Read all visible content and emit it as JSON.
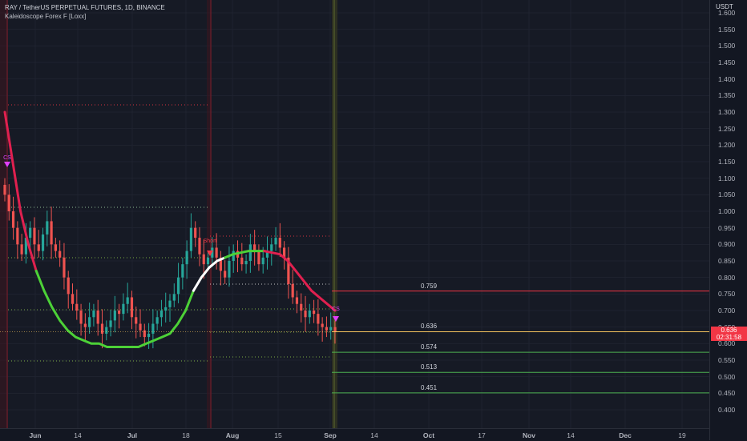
{
  "header": {
    "symbol_line": "RAY / TetherUS PERPETUAL FUTURES, 1D, BINANCE",
    "indicator_name": "Kaleidoscope Forex F [Loxx]"
  },
  "price_axis": {
    "currency": "USDT",
    "ticks": [
      "1.600",
      "1.550",
      "1.500",
      "1.450",
      "1.400",
      "1.350",
      "1.300",
      "1.250",
      "1.200",
      "1.150",
      "1.100",
      "1.050",
      "1.000",
      "0.950",
      "0.900",
      "0.850",
      "0.800",
      "0.750",
      "0.700",
      "0.650",
      "0.600",
      "0.550",
      "0.500",
      "0.450",
      "0.400"
    ],
    "current_price": "0.636",
    "countdown": "02:31:58"
  },
  "time_axis": {
    "ticks": [
      "Jun",
      "14",
      "Jul",
      "18",
      "Aug",
      "15",
      "Sep",
      "14",
      "Oct",
      "17",
      "Nov",
      "14",
      "Dec",
      "19"
    ]
  },
  "levels": [
    {
      "label": "0.759",
      "value": 0.759,
      "color": "#f23645"
    },
    {
      "label": "0.636",
      "value": 0.636,
      "color": "#f7c55f"
    },
    {
      "label": "0.574",
      "value": 0.574,
      "color": "#4caf50"
    },
    {
      "label": "0.513",
      "value": 0.513,
      "color": "#4caf50"
    },
    {
      "label": "0.451",
      "value": 0.451,
      "color": "#4caf50"
    }
  ],
  "signals": [
    {
      "text": "Short",
      "color": "#f23645"
    },
    {
      "text": "CS",
      "color": "#e040fb"
    },
    {
      "text": "CS",
      "color": "#e040fb"
    }
  ],
  "colors": {
    "bull_candle": "#26a69a",
    "bear_candle": "#ef5350",
    "ma_up": "#4cd137",
    "ma_down": "#e0204f",
    "ma_flat": "#ffffff"
  },
  "chart_data": {
    "type": "candlestick",
    "symbol": "RAY / TetherUS PERPETUAL FUTURES",
    "timeframe": "1D",
    "exchange": "BINANCE",
    "ylim": [
      0.38,
      1.62
    ],
    "current_price": 0.636,
    "close_series": [
      1.05,
      1.0,
      0.95,
      0.9,
      0.87,
      0.92,
      0.95,
      0.9,
      0.88,
      0.93,
      0.97,
      0.9,
      0.88,
      0.86,
      0.8,
      0.75,
      0.72,
      0.7,
      0.66,
      0.65,
      0.68,
      0.7,
      0.66,
      0.63,
      0.65,
      0.67,
      0.7,
      0.69,
      0.72,
      0.74,
      0.68,
      0.66,
      0.64,
      0.62,
      0.63,
      0.66,
      0.68,
      0.7,
      0.71,
      0.73,
      0.75,
      0.8,
      0.84,
      0.88,
      0.95,
      0.92,
      0.87,
      0.84,
      0.86,
      0.89,
      0.86,
      0.82,
      0.8,
      0.85,
      0.88,
      0.86,
      0.84,
      0.85,
      0.9,
      0.88,
      0.84,
      0.86,
      0.88,
      0.9,
      0.92,
      0.89,
      0.86,
      0.78,
      0.74,
      0.72,
      0.7,
      0.68,
      0.7,
      0.69,
      0.66,
      0.65,
      0.64,
      0.65,
      0.636
    ],
    "ma_series": [
      1.3,
      1.15,
      1.0,
      0.9,
      0.82,
      0.76,
      0.71,
      0.67,
      0.64,
      0.62,
      0.61,
      0.6,
      0.6,
      0.59,
      0.59,
      0.59,
      0.59,
      0.59,
      0.6,
      0.61,
      0.62,
      0.63,
      0.66,
      0.7,
      0.76,
      0.8,
      0.83,
      0.85,
      0.86,
      0.87,
      0.875,
      0.88,
      0.88,
      0.88,
      0.875,
      0.87,
      0.85,
      0.82,
      0.79,
      0.76,
      0.74,
      0.72,
      0.7
    ],
    "levels": [
      0.759,
      0.636,
      0.574,
      0.513,
      0.451
    ],
    "x_tick_labels": [
      "Jun",
      "14",
      "Jul",
      "18",
      "Aug",
      "15",
      "Sep",
      "14",
      "Oct",
      "17",
      "Nov",
      "14",
      "Dec",
      "19"
    ]
  }
}
